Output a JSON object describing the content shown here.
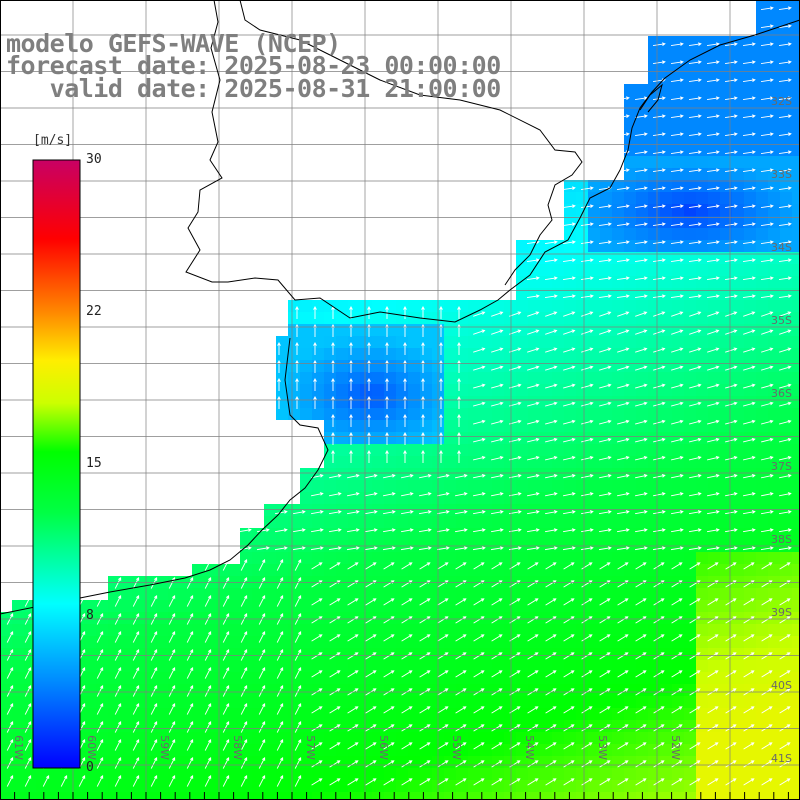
{
  "title": {
    "line1": "modelo GEFS-WAVE (NCEP)",
    "line2": "forecast date: 2025-08-23 00:00:00",
    "line3": "   valid date: 2025-08-31 21:00:00"
  },
  "colorbar": {
    "unit": "[m/s]",
    "labels": [
      "30",
      "22",
      "15",
      "8",
      "0"
    ],
    "min": 0,
    "max": 30,
    "colors": [
      "#0000ff",
      "#0088ff",
      "#00ffff",
      "#00ff00",
      "#ffff00",
      "#ff8800",
      "#ff0000",
      "#c80064"
    ]
  },
  "lat_labels": [
    "32S",
    "33S",
    "34S",
    "35S",
    "36S",
    "37S",
    "38S",
    "39S",
    "40S",
    "41S"
  ],
  "lon_labels": [
    "61W",
    "60W",
    "59W",
    "58W",
    "57W",
    "56W",
    "55W",
    "54W",
    "53W",
    "52W"
  ],
  "colors": {
    "land": "#ffffff",
    "grid": "#7f7f7f",
    "coast": "#000000",
    "arrows": "#ffffff",
    "title": "#7f7f7f"
  }
}
